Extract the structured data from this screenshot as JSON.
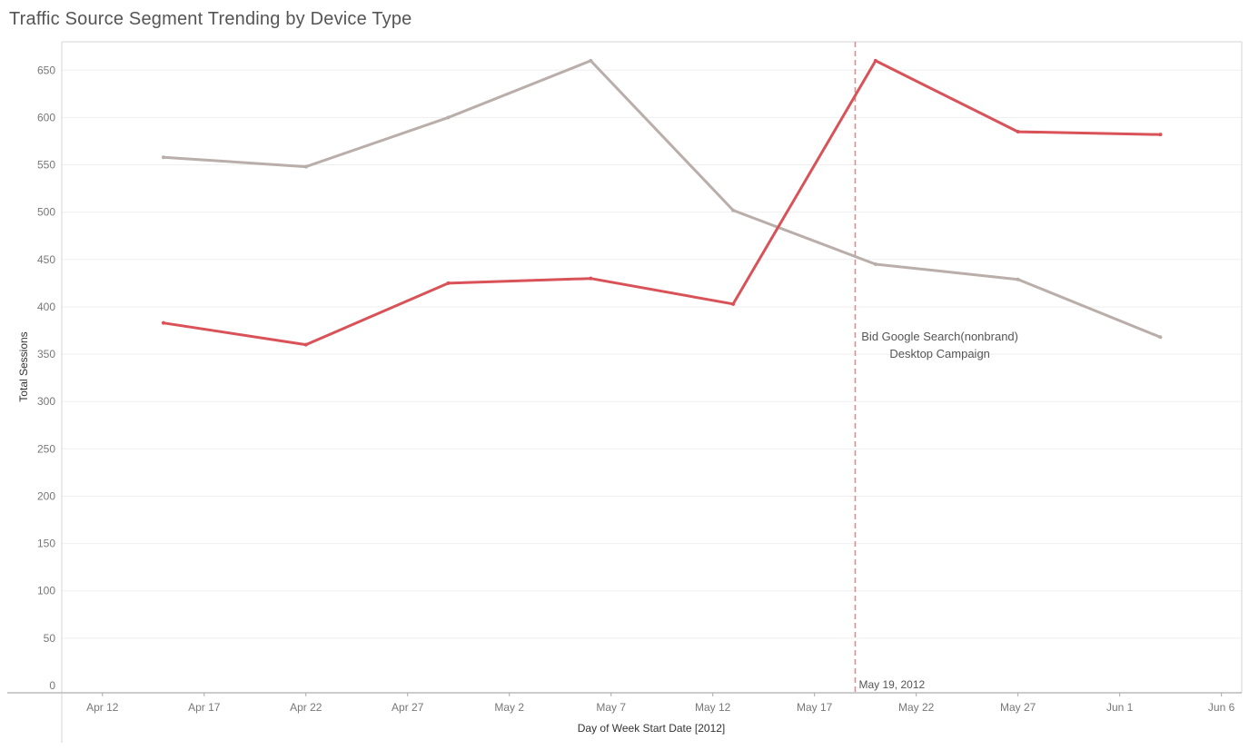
{
  "chart_data": {
    "type": "line",
    "title": "Traffic Source Segment Trending by Device Type",
    "xlabel": "Day of Week Start Date [2012]",
    "ylabel": "Total Sessions",
    "ylim": [
      0,
      680
    ],
    "yticks": [
      0,
      50,
      100,
      150,
      200,
      250,
      300,
      350,
      400,
      450,
      500,
      550,
      600,
      650
    ],
    "xlim": [
      "2012-04-10",
      "2012-06-07"
    ],
    "xticks": [
      {
        "date": "2012-04-12",
        "label": "Apr 12"
      },
      {
        "date": "2012-04-17",
        "label": "Apr 17"
      },
      {
        "date": "2012-04-22",
        "label": "Apr 22"
      },
      {
        "date": "2012-04-27",
        "label": "Apr 27"
      },
      {
        "date": "2012-05-02",
        "label": "May 2"
      },
      {
        "date": "2012-05-07",
        "label": "May 7"
      },
      {
        "date": "2012-05-12",
        "label": "May 12"
      },
      {
        "date": "2012-05-17",
        "label": "May 17"
      },
      {
        "date": "2012-05-22",
        "label": "May 22"
      },
      {
        "date": "2012-05-27",
        "label": "May 27"
      },
      {
        "date": "2012-06-01",
        "label": "Jun 1"
      },
      {
        "date": "2012-06-06",
        "label": "Jun 6"
      }
    ],
    "x": [
      "2012-04-15",
      "2012-04-22",
      "2012-04-29",
      "2012-05-06",
      "2012-05-13",
      "2012-05-20",
      "2012-05-27",
      "2012-06-03"
    ],
    "series": [
      {
        "color": "#b9aea9",
        "values": [
          558,
          548,
          600,
          660,
          502,
          445,
          429,
          368
        ]
      },
      {
        "color": "#d95258",
        "values": [
          383,
          360,
          425,
          430,
          403,
          660,
          585,
          582
        ]
      }
    ],
    "reference_line": {
      "date": "2012-05-19",
      "label": "May 19, 2012",
      "color": "#e8888e"
    },
    "annotation": {
      "line1": "Bid Google Search(nonbrand)",
      "line2": "Desktop Campaign",
      "date": "2012-05-27",
      "value": 355
    },
    "grid": true,
    "legend": "none"
  }
}
